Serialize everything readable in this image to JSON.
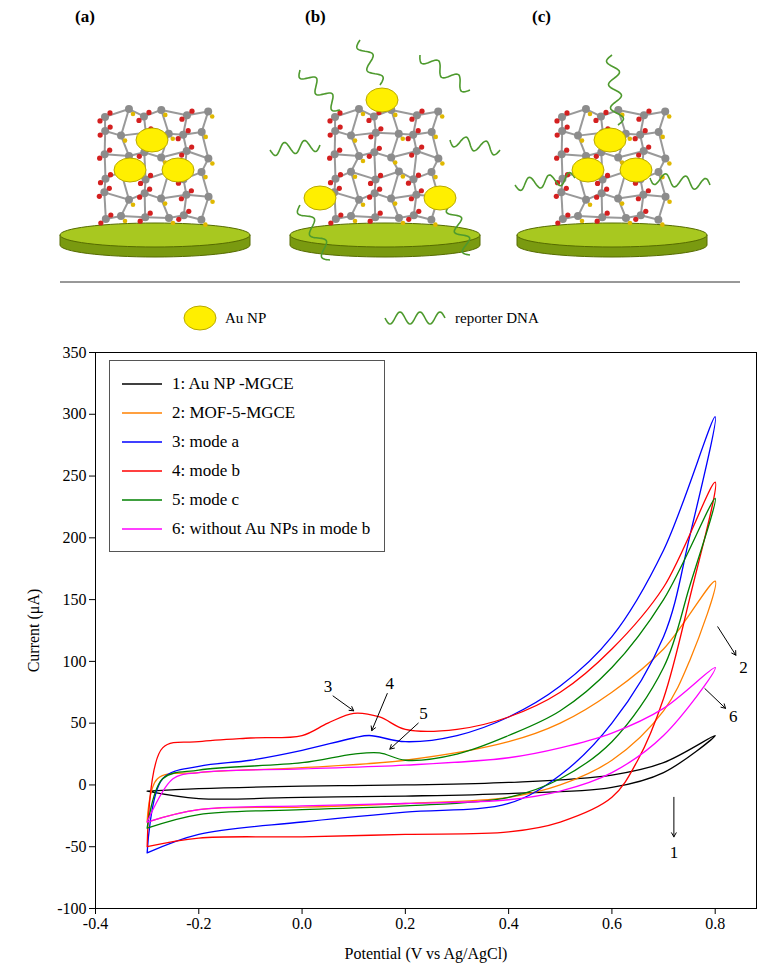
{
  "diagram": {
    "panels": [
      "(a)",
      "(b)",
      "(c)"
    ],
    "key": [
      "Au NP",
      "reporter DNA"
    ]
  },
  "chart_data": {
    "type": "line",
    "x_label": "Potential (V vs Ag/AgCl)",
    "y_label": "Current (μA)",
    "xlim": [
      -0.4,
      0.88
    ],
    "xticks": [
      -0.4,
      -0.2,
      {
        "value": 0,
        "label": "0.0"
      },
      0.2,
      0.4,
      0.6,
      0.8
    ],
    "ylim": [
      -100,
      350
    ],
    "yticks": [
      -100,
      -50,
      0,
      50,
      100,
      150,
      200,
      250,
      300,
      350
    ],
    "legend": "upper left",
    "series": [
      {
        "name": "1: Au NP -MGCE",
        "color": "#000000",
        "x": [
          -0.3,
          -0.2,
          0,
          0.2,
          0.4,
          0.6,
          0.7,
          0.8,
          0.7,
          0.6,
          0.4,
          0.2,
          0,
          -0.2,
          -0.3
        ],
        "values": [
          -5,
          -3,
          -1,
          0,
          2,
          8,
          18,
          40,
          10,
          -2,
          -7,
          -9,
          -10,
          -11,
          -5
        ]
      },
      {
        "name": "2: MOF-5-MGCE",
        "color": "#ff8000",
        "x": [
          -0.3,
          -0.28,
          -0.2,
          0,
          0.2,
          0.4,
          0.5,
          0.6,
          0.7,
          0.8,
          0.75,
          0.7,
          0.6,
          0.5,
          0.4,
          0.2,
          0,
          -0.2,
          -0.3
        ],
        "values": [
          -30,
          5,
          10,
          14,
          20,
          35,
          50,
          75,
          110,
          165,
          100,
          60,
          20,
          0,
          -10,
          -15,
          -18,
          -20,
          -30
        ]
      },
      {
        "name": "3: mode a",
        "color": "#0000ff",
        "x": [
          -0.3,
          -0.27,
          -0.2,
          -0.1,
          0,
          0.1,
          0.13,
          0.2,
          0.3,
          0.4,
          0.5,
          0.6,
          0.7,
          0.8,
          0.75,
          0.7,
          0.6,
          0.5,
          0.4,
          0.2,
          0,
          -0.2,
          -0.3
        ],
        "values": [
          -55,
          5,
          15,
          20,
          28,
          38,
          40,
          35,
          40,
          55,
          80,
          120,
          190,
          298,
          200,
          120,
          50,
          8,
          -15,
          -22,
          -30,
          -40,
          -55
        ]
      },
      {
        "name": "4: mode b",
        "color": "#ff0000",
        "x": [
          -0.3,
          -0.27,
          -0.2,
          -0.1,
          0,
          0.05,
          0.1,
          0.15,
          0.2,
          0.3,
          0.4,
          0.5,
          0.6,
          0.7,
          0.8,
          0.75,
          0.7,
          0.65,
          0.6,
          0.5,
          0.4,
          0.2,
          0,
          -0.2,
          -0.3
        ],
        "values": [
          -50,
          30,
          35,
          38,
          40,
          50,
          58,
          55,
          45,
          45,
          55,
          75,
          110,
          160,
          245,
          150,
          70,
          20,
          -10,
          -30,
          -38,
          -40,
          -42,
          -43,
          -50
        ]
      },
      {
        "name": "5: mode c",
        "color": "#008000",
        "x": [
          -0.3,
          -0.27,
          -0.2,
          0,
          0.1,
          0.15,
          0.2,
          0.3,
          0.4,
          0.5,
          0.6,
          0.7,
          0.8,
          0.75,
          0.7,
          0.6,
          0.5,
          0.4,
          0.2,
          0,
          -0.2,
          -0.3
        ],
        "values": [
          -35,
          5,
          12,
          18,
          25,
          26,
          20,
          25,
          40,
          60,
          95,
          150,
          232,
          160,
          95,
          35,
          5,
          -10,
          -17,
          -20,
          -24,
          -35
        ]
      },
      {
        "name": "6: without Au NPs in mode b",
        "color": "#ff00ff",
        "x": [
          -0.3,
          -0.25,
          -0.2,
          0,
          0.2,
          0.4,
          0.5,
          0.6,
          0.7,
          0.8,
          0.7,
          0.6,
          0.5,
          0.4,
          0.2,
          0,
          -0.2,
          -0.3
        ],
        "values": [
          -30,
          5,
          10,
          13,
          16,
          22,
          30,
          42,
          62,
          95,
          40,
          10,
          -5,
          -12,
          -15,
          -17,
          -20,
          -30
        ]
      }
    ],
    "annotations": [
      {
        "text": "1",
        "x": 0.72,
        "y": -55,
        "arrow": {
          "from": [
            0.72,
            -10
          ],
          "to": [
            0.72,
            -42
          ]
        }
      },
      {
        "text": "2",
        "x": 0.855,
        "y": 95,
        "arrow": {
          "from": [
            0.805,
            128
          ],
          "to": [
            0.84,
            105
          ]
        }
      },
      {
        "text": "6",
        "x": 0.835,
        "y": 55,
        "arrow": {
          "from": [
            0.78,
            78
          ],
          "to": [
            0.82,
            62
          ]
        }
      },
      {
        "text": "3",
        "x": 0.05,
        "y": 80,
        "arrow": {
          "from": [
            0.06,
            72
          ],
          "to": [
            0.1,
            60
          ]
        }
      },
      {
        "text": "4",
        "x": 0.17,
        "y": 82,
        "arrow": {
          "from": [
            0.165,
            74
          ],
          "to": [
            0.135,
            44
          ]
        }
      },
      {
        "text": "5",
        "x": 0.235,
        "y": 58,
        "arrow": {
          "from": [
            0.225,
            50
          ],
          "to": [
            0.17,
            29
          ]
        }
      }
    ]
  }
}
